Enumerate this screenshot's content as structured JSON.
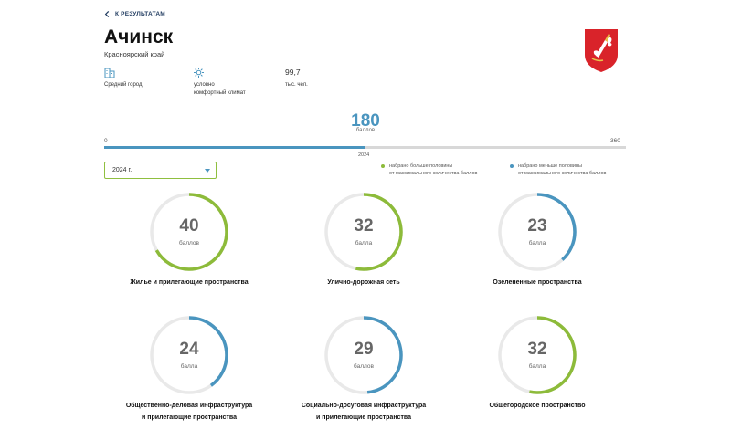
{
  "nav": {
    "back_label": "К РЕЗУЛЬТАТАМ"
  },
  "city": {
    "name": "Ачинск",
    "region": "Красноярский край"
  },
  "info": [
    {
      "icon": "city-buildings-icon",
      "line1": "Средний город",
      "line2": ""
    },
    {
      "icon": "sun-icon",
      "line1": "условно",
      "line2": "комфортный климат"
    },
    {
      "value": "99,7",
      "line1": "тыс. чел."
    }
  ],
  "score": {
    "total": "180",
    "unit": "баллов",
    "min": "0",
    "max": "360",
    "fraction": 0.5,
    "year_mark": "2024"
  },
  "year_select": {
    "selected": "2024 г."
  },
  "legend": [
    {
      "color": "#8dbb3a",
      "line1": "набрано больше половины",
      "line2": "от максимального количества баллов"
    },
    {
      "color": "#4a95bf",
      "line1": "набрано меньше половины",
      "line2": "от максимального количества баллов"
    }
  ],
  "colors": {
    "above_half": "#8dbb3a",
    "below_half": "#4a95bf",
    "track": "#e9e9e9"
  },
  "indicators": [
    {
      "value": "40",
      "unit": "баллов",
      "fraction": 0.667,
      "status": "above_half",
      "label1": "Жилье и прилегающие пространства",
      "label2": ""
    },
    {
      "value": "32",
      "unit": "балла",
      "fraction": 0.533,
      "status": "above_half",
      "label1": "Улично-дорожная сеть",
      "label2": ""
    },
    {
      "value": "23",
      "unit": "балла",
      "fraction": 0.383,
      "status": "below_half",
      "label1": "Озелененные пространства",
      "label2": ""
    },
    {
      "value": "24",
      "unit": "балла",
      "fraction": 0.4,
      "status": "below_half",
      "label1": "Общественно-деловая инфраструктура",
      "label2": "и прилегающие пространства"
    },
    {
      "value": "29",
      "unit": "баллов",
      "fraction": 0.483,
      "status": "below_half",
      "label1": "Социально-досуговая инфраструктура",
      "label2": "и прилегающие пространства"
    },
    {
      "value": "32",
      "unit": "балла",
      "fraction": 0.533,
      "status": "above_half",
      "label1": "Общегородское пространство",
      "label2": ""
    }
  ]
}
